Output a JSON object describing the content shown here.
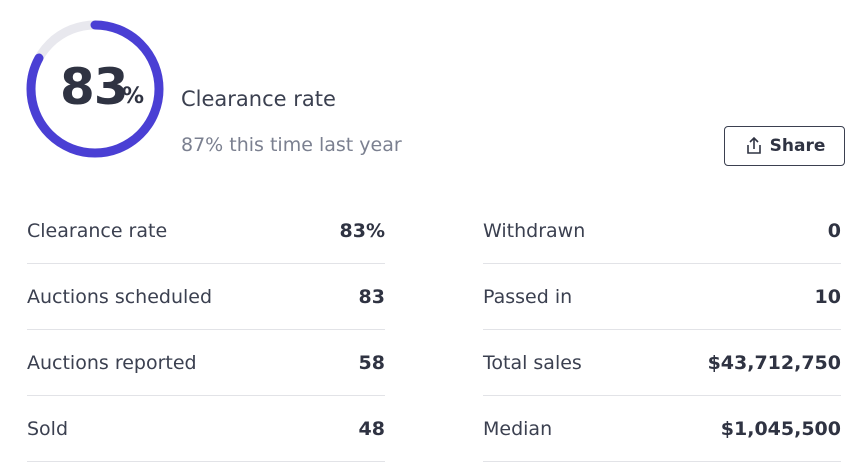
{
  "gauge": {
    "value": 83,
    "unit": "%",
    "label": "Clearance rate",
    "comparison": "87% this time last year"
  },
  "share_button": "Share",
  "stats": {
    "left": [
      {
        "label": "Clearance rate",
        "value": "83%"
      },
      {
        "label": "Auctions scheduled",
        "value": "83"
      },
      {
        "label": "Auctions reported",
        "value": "58"
      },
      {
        "label": "Sold",
        "value": "48"
      }
    ],
    "right": [
      {
        "label": "Withdrawn",
        "value": "0"
      },
      {
        "label": "Passed in",
        "value": "10"
      },
      {
        "label": "Total sales",
        "value": "$43,712,750"
      },
      {
        "label": "Median",
        "value": "$1,045,500"
      }
    ]
  }
}
